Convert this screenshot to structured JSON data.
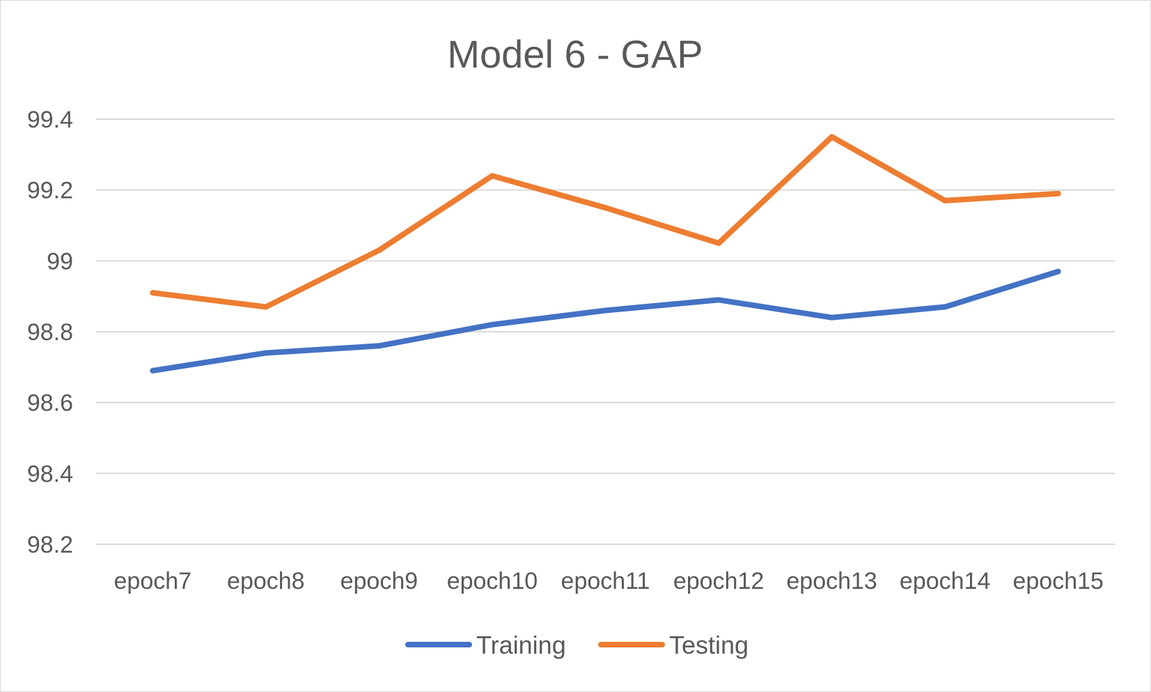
{
  "chart_data": {
    "type": "line",
    "title": "Model 6 - GAP",
    "xlabel": "",
    "ylabel": "",
    "categories": [
      "epoch7",
      "epoch8",
      "epoch9",
      "epoch10",
      "epoch11",
      "epoch12",
      "epoch13",
      "epoch14",
      "epoch15"
    ],
    "ylim": [
      98.2,
      99.4
    ],
    "yticks": [
      98.2,
      98.4,
      98.6,
      98.8,
      99,
      99.2,
      99.4
    ],
    "ytick_labels": [
      "98.2",
      "98.4",
      "98.6",
      "98.8",
      "99",
      "99.2",
      "99.4"
    ],
    "grid": "horizontal",
    "legend_position": "bottom",
    "series": [
      {
        "name": "Training",
        "color": "#4472C4",
        "values": [
          98.69,
          98.74,
          98.76,
          98.82,
          98.86,
          98.89,
          98.84,
          98.87,
          98.97
        ]
      },
      {
        "name": "Testing",
        "color": "#ED7D31",
        "values": [
          98.91,
          98.87,
          99.03,
          99.24,
          99.15,
          99.05,
          99.35,
          99.17,
          99.19
        ]
      }
    ]
  }
}
